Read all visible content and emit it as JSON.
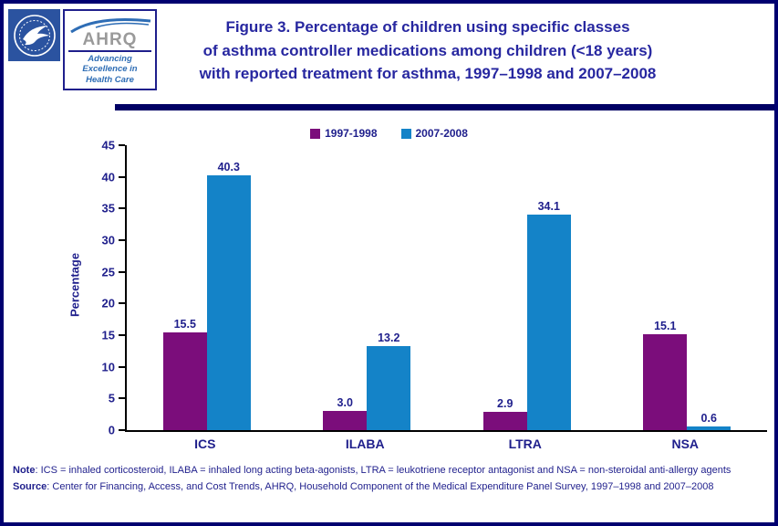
{
  "header": {
    "title_lines": [
      "Figure 3. Percentage of children using specific classes",
      "of asthma controller medications among children (<18 years)",
      "with reported treatment for asthma, 1997–1998 and 2007–2008"
    ],
    "logos": {
      "hhs_seal": "hhs-seal",
      "ahrq_name": "AHRQ",
      "ahrq_tagline_lines": [
        "Advancing",
        "Excellence in",
        "Health Care"
      ]
    }
  },
  "chart_data": {
    "type": "bar",
    "categories": [
      "ICS",
      "ILABA",
      "LTRA",
      "NSA"
    ],
    "series": [
      {
        "name": "1997-1998",
        "color": "#7B0D7B",
        "values": [
          15.5,
          3.0,
          2.9,
          15.1
        ]
      },
      {
        "name": "2007-2008",
        "color": "#1483C8",
        "values": [
          40.3,
          13.2,
          34.1,
          0.6
        ]
      }
    ],
    "title": "",
    "xlabel": "",
    "ylabel": "Percentage",
    "ylim": [
      0,
      45
    ],
    "ytick_step": 5,
    "grid": false,
    "legend_position": "top-center",
    "value_labels": true
  },
  "footer": {
    "note_label": "Note",
    "note_text": ": ICS = inhaled corticosteroid, ILABA =  inhaled long acting beta-agonists, LTRA = leukotriene receptor antagonist and NSA = non-steroidal anti-allergy agents",
    "source_label": "Source",
    "source_text": ": Center for Financing, Access, and Cost Trends, AHRQ,  Household Component of the Medical Expenditure Panel Survey,  1997–1998 and 2007–2008"
  }
}
